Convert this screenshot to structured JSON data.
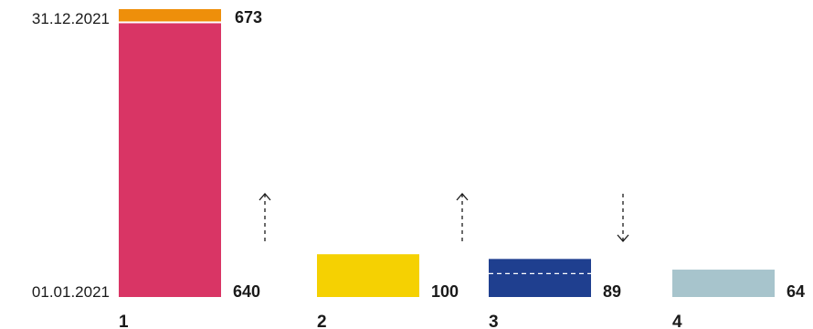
{
  "chart_data": {
    "type": "bar",
    "title": "",
    "xlabel": "",
    "ylabel": "",
    "y_axis_labels": {
      "start": "01.01.2021",
      "end": "31.12.2021"
    },
    "categories": [
      "1",
      "2",
      "3",
      "4"
    ],
    "values": [
      640,
      100,
      89,
      64
    ],
    "value_labels": [
      "640",
      "100",
      "89",
      "64"
    ],
    "extra": {
      "category": "1",
      "from": 640,
      "to": 673,
      "label": "673",
      "color": "#ee8f0a"
    },
    "bar_colors": [
      "#d93565",
      "#f5d102",
      "#1f3f8f",
      "#a7c4cc"
    ],
    "trend_arrows": [
      "up",
      "up",
      "down",
      "none"
    ],
    "bar3_dashed_mark": 89
  }
}
